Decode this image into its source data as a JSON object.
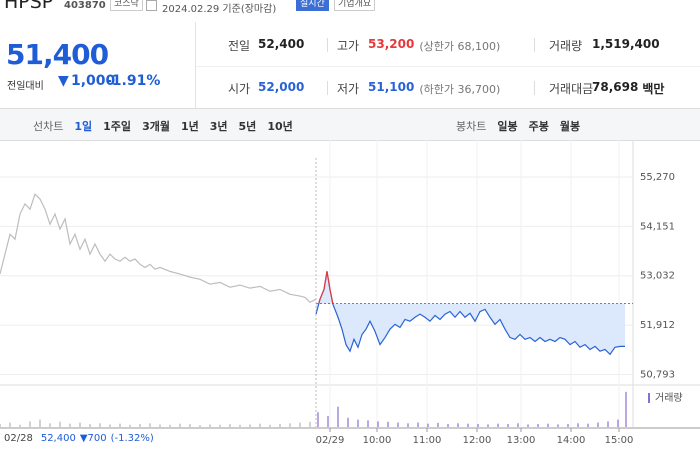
{
  "header": {
    "name": "HPSP",
    "code": "403870",
    "market": "코스닥",
    "date": "2024.02.29 기준(장마감)",
    "realtime": "실시간",
    "company_info": "기업개요"
  },
  "quote": {
    "price": "51,400",
    "change_label": "전일대비",
    "change_arrow": "▼",
    "change": "1,000",
    "change_pct": "-1.91%",
    "stats": [
      {
        "label": "전일",
        "value": "52,400",
        "color": "#222222"
      },
      {
        "label": "고가",
        "value": "53,200",
        "color": "#e5383b",
        "note": "(상한가 68,100)"
      },
      {
        "label": "거래량",
        "value": "1,519,400",
        "color": "#222222"
      },
      {
        "label": "시가",
        "value": "52,000",
        "color": "#2a63d6"
      },
      {
        "label": "저가",
        "value": "51,100",
        "color": "#2a63d6",
        "note": "(하한가 36,700)"
      },
      {
        "label": "거래대금",
        "value": "78,698",
        "color": "#222222",
        "unit": "백만"
      }
    ]
  },
  "tabs": {
    "line_label": "선차트",
    "line": [
      "1일",
      "1주일",
      "3개월",
      "1년",
      "3년",
      "5년",
      "10년"
    ],
    "candle_label": "봉차트",
    "candle": [
      "일봉",
      "주봉",
      "월봉"
    ]
  },
  "chart_data": {
    "type": "line",
    "series": [
      {
        "color": "#bdbdbd",
        "x": [
          0,
          5,
          10,
          15,
          20,
          25,
          30,
          35,
          40,
          45,
          50,
          55,
          60,
          65,
          70,
          75,
          80,
          85,
          90,
          95,
          100,
          105,
          110,
          115,
          120,
          125,
          130,
          135,
          140,
          145,
          150,
          155,
          160,
          170,
          180,
          190,
          200,
          210,
          220,
          230,
          240,
          250,
          260,
          270,
          280,
          290,
          300,
          305,
          310,
          316
        ],
        "values": [
          53070,
          53520,
          53970,
          53860,
          54430,
          54660,
          54540,
          54880,
          54770,
          54540,
          54200,
          54430,
          54090,
          54320,
          53750,
          53970,
          53630,
          53860,
          53520,
          53750,
          53520,
          53360,
          53520,
          53410,
          53360,
          53450,
          53360,
          53410,
          53290,
          53220,
          53290,
          53180,
          53220,
          53130,
          53070,
          53000,
          52950,
          52840,
          52880,
          52770,
          52820,
          52750,
          52790,
          52680,
          52720,
          52610,
          52570,
          52540,
          52430,
          52500
        ]
      },
      {
        "color": "#2a63d6",
        "color_above": "#e5383b",
        "fill_color": "#dce8fb",
        "x": [
          316,
          320,
          324,
          327,
          330,
          333,
          338,
          342,
          346,
          350,
          354,
          358,
          362,
          366,
          370,
          375,
          380,
          385,
          390,
          395,
          400,
          405,
          410,
          415,
          420,
          425,
          430,
          435,
          440,
          445,
          450,
          455,
          460,
          465,
          470,
          475,
          480,
          485,
          490,
          495,
          500,
          505,
          510,
          515,
          520,
          525,
          530,
          535,
          540,
          545,
          550,
          555,
          560,
          565,
          570,
          575,
          580,
          585,
          590,
          595,
          600,
          605,
          610,
          615,
          620,
          625
        ],
        "values": [
          52160,
          52500,
          52720,
          53130,
          52720,
          52380,
          52090,
          51820,
          51470,
          51320,
          51590,
          51410,
          51700,
          51820,
          52000,
          51770,
          51470,
          51630,
          51820,
          51930,
          51860,
          52040,
          52000,
          52090,
          52160,
          52090,
          52000,
          52130,
          52040,
          52160,
          52220,
          52090,
          52220,
          52090,
          52180,
          52000,
          52220,
          52270,
          52090,
          51930,
          52040,
          51820,
          51630,
          51590,
          51700,
          51590,
          51630,
          51540,
          51630,
          51540,
          51590,
          51540,
          51630,
          51590,
          51470,
          51540,
          51410,
          51470,
          51360,
          51430,
          51320,
          51360,
          51250,
          51410,
          51430,
          51430
        ]
      }
    ],
    "reference_line": 52400,
    "xlim": [
      0,
      633
    ],
    "xticks": [
      {
        "value": 330,
        "label": "02/29"
      },
      {
        "value": 377,
        "label": "10:00"
      },
      {
        "value": 427,
        "label": "11:00"
      },
      {
        "value": 477,
        "label": "12:00"
      },
      {
        "value": 521,
        "label": "13:00"
      },
      {
        "value": 571,
        "label": "14:00"
      },
      {
        "value": 619,
        "label": "15:00"
      }
    ],
    "ylim": [
      50600,
      55700
    ],
    "yticks": [
      {
        "value": 55270,
        "label": "55,270"
      },
      {
        "value": 54151,
        "label": "54,151"
      },
      {
        "value": 53032,
        "label": "53,032"
      },
      {
        "value": 51912,
        "label": "51,912"
      },
      {
        "value": 50793,
        "label": "50,793"
      }
    ],
    "grid": true,
    "volume": {
      "label": "거래량",
      "ylim": [
        0,
        100
      ],
      "series": [
        {
          "color": "#b5b5b5",
          "x": [
            0,
            10,
            20,
            30,
            40,
            50,
            60,
            70,
            80,
            90,
            100,
            110,
            120,
            130,
            140,
            150,
            160,
            170,
            180,
            190,
            200,
            210,
            220,
            230,
            240,
            250,
            260,
            270,
            280,
            290,
            300,
            310
          ],
          "values": [
            8,
            12,
            6,
            15,
            20,
            10,
            14,
            9,
            12,
            8,
            10,
            7,
            9,
            6,
            8,
            10,
            7,
            6,
            9,
            8,
            5,
            7,
            6,
            8,
            6,
            7,
            9,
            6,
            8,
            10,
            12,
            14
          ]
        },
        {
          "color": "#8a6fd1",
          "x": [
            318,
            328,
            338,
            348,
            358,
            368,
            378,
            388,
            398,
            408,
            418,
            428,
            438,
            448,
            458,
            468,
            478,
            488,
            498,
            508,
            518,
            528,
            538,
            548,
            558,
            568,
            578,
            588,
            598,
            608,
            618,
            626
          ],
          "values": [
            40,
            30,
            55,
            25,
            20,
            18,
            15,
            14,
            12,
            10,
            12,
            9,
            11,
            8,
            10,
            9,
            8,
            7,
            9,
            8,
            10,
            7,
            8,
            9,
            7,
            8,
            10,
            9,
            12,
            15,
            20,
            95
          ]
        }
      ]
    }
  },
  "footer": {
    "date": "02/28",
    "price": "52,400",
    "change": "▼700",
    "pct": "(-1.32%)"
  }
}
